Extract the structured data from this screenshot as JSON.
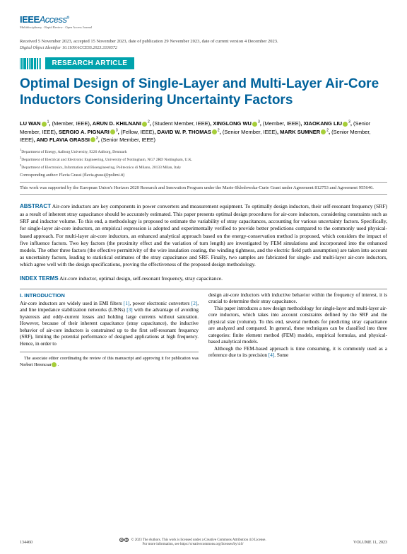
{
  "journal": {
    "logo": "IEEEAccess",
    "tagline": "Multidisciplinary · Rapid Review · Open Access Journal"
  },
  "meta": {
    "dates": "Received 5 November 2023, accepted 15 November 2023, date of publication 29 November 2023, date of current version 4 December 2023.",
    "doi": "Digital Object Identifier 10.1109/ACCESS.2023.3336572"
  },
  "badge": "RESEARCH ARTICLE",
  "title": "Optimal Design of Single-Layer and Multi-Layer Air-Core Inductors Considering Uncertainty Factors",
  "authors_html": "LU WAN|1|, (Member, IEEE), ARUN D. KHILNANI|2|, (Student Member, IEEE), XINGLONG WU|3|, (Member, IEEE), XIAOKANG LIU|3|, (Senior Member, IEEE), SERGIO A. PIGNARI|3|, (Fellow, IEEE), DAVID W. P. THOMAS|2|, (Senior Member, IEEE), MARK SUMNER|2|, (Senior Member, IEEE), AND FLAVIA GRASSI|3|, (Senior Member, IEEE)",
  "affiliations": [
    "1Department of Energy, Aalborg University, 9220 Aalborg, Denmark",
    "2Department of Electrical and Electronic Engineering, University of Nottingham, NG7 2RD Nottingham, U.K.",
    "3Department of Electronics, Information and Bioengineering, Politecnico di Milano, 20133 Milan, Italy"
  ],
  "corresponding": "Corresponding author: Flavia Grassi (flavia.grassi@polimi.it)",
  "funding": "This work was supported by the European Union's Horizon 2020 Research and Innovation Program under the Marie-Sklodowska-Curie Grant under Agreement 812753 and Agreement 955646.",
  "abstract": {
    "label": "ABSTRACT",
    "text": "Air-core inductors are key components in power converters and measurement equipment. To optimally design inductors, their self-resonant frequency (SRF) as a result of inherent stray capacitance should be accurately estimated. This paper presents optimal design procedures for air-core inductors, considering constraints such as SRF and inductor volume. To this end, a methodology is proposed to estimate the variability of stray capacitances, accounting for various uncertainty factors. Specifically, for single-layer air-core inductors, an empirical expression is adopted and experimentally verified to provide better predictions compared to the commonly used physical-based approach. For multi-layer air-core inductors, an enhanced analytical approach based on the energy-conservation method is proposed, which considers the impact of five influence factors. Two key factors (the proximity effect and the variation of turn length) are investigated by FEM simulations and incorporated into the enhanced models. The other three factors (the effective permittivity of the wire insulation coating, the winding tightness, and the electric field path assumption) are taken into account as uncertainty factors, leading to statistical estimates of the stray capacitance and SRF. Finally, two samples are fabricated for single- and multi-layer air-core inductors, which agree well with the design specifications, proving the effectiveness of the proposed design methodology."
  },
  "index_terms": {
    "label": "INDEX TERMS",
    "text": "Air-core inductor, optimal design, self-resonant frequency, stray capacitance."
  },
  "section": {
    "heading": "I. INTRODUCTION",
    "col1_p1": "Air-core inductors are widely used in EMI filters [1], power electronic converters [2], and line impedance stabilization networks (LISNs) [3] with the advantage of avoiding hysteresis and eddy-current losses and holding large currents without saturation. However, because of their inherent capacitance (stray capacitance), the inductive behavior of air-core inductors is constrained up to the first self-resonant frequency (SRF), limiting the potential performance of designed applications at high frequency. Hence, in order to",
    "col2_p1": "design air-core inductors with inductive behavior within the frequency of interest, it is crucial to determine their stray capacitance.",
    "col2_p2": "This paper introduces a new design methodology for single-layer and multi-layer air-core inductors, which takes into account constraints defined by the SRF and the physical size (volume). To this end, several methods for predicting stray capacitance are analyzed and compared. In general, these techniques can be classified into three categories: finite element method (FEM) models, empirical formulas, and physical-based analytical models.",
    "col2_p3": "Although the FEM-based approach is time consuming, it is commonly used as a reference due to its precision [4]. Some"
  },
  "editor_note": "The associate editor coordinating the review of this manuscript and approving it for publication was Norbert Herencsar",
  "footer": {
    "page": "134460",
    "license1": "© 2023 The Authors. This work is licensed under a Creative Commons Attribution 4.0 License.",
    "license2": "For more information, see https://creativecommons.org/licenses/by/4.0/",
    "volume": "VOLUME 11, 2023"
  },
  "colors": {
    "brand_blue": "#00629b",
    "teal": "#00a3ad",
    "orcid_green": "#a6ce39"
  }
}
